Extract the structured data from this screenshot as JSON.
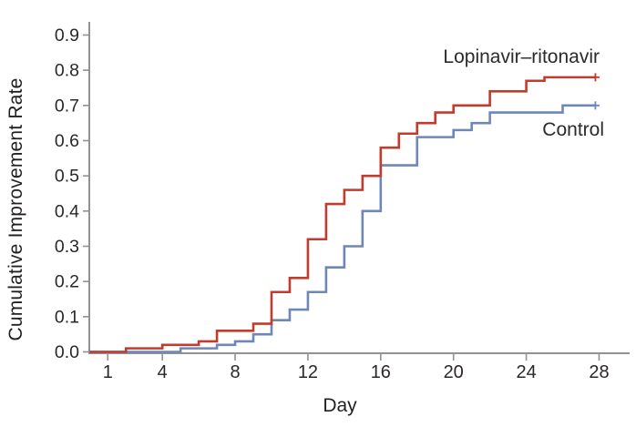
{
  "chart_data": {
    "type": "line",
    "subtype": "step-after-cumulative-incidence",
    "title": "",
    "xlabel": "Day",
    "ylabel": "Cumulative Improvement Rate",
    "xlim": [
      0,
      28
    ],
    "ylim": [
      0.0,
      0.9
    ],
    "x_ticks": [
      1,
      4,
      8,
      12,
      16,
      20,
      24,
      28
    ],
    "y_ticks": [
      "0.0",
      "0.1",
      "0.2",
      "0.3",
      "0.4",
      "0.5",
      "0.6",
      "0.7",
      "0.8",
      "0.9"
    ],
    "grid": false,
    "legend_position": "inline-labels-right",
    "axis_color": "#909295",
    "tick_text_color": "#2b2728",
    "series": [
      {
        "name": "Lopinavir–ritonavir",
        "color": "#c23b2c",
        "points": [
          [
            0,
            0.0
          ],
          [
            2,
            0.01
          ],
          [
            4,
            0.02
          ],
          [
            6,
            0.03
          ],
          [
            7,
            0.06
          ],
          [
            9,
            0.08
          ],
          [
            10,
            0.17
          ],
          [
            11,
            0.21
          ],
          [
            12,
            0.32
          ],
          [
            13,
            0.42
          ],
          [
            14,
            0.46
          ],
          [
            15,
            0.5
          ],
          [
            16,
            0.58
          ],
          [
            17,
            0.62
          ],
          [
            18,
            0.65
          ],
          [
            19,
            0.68
          ],
          [
            20,
            0.7
          ],
          [
            22,
            0.74
          ],
          [
            24,
            0.77
          ],
          [
            25,
            0.78
          ]
        ],
        "end_day": 27.8,
        "final_value": 0.78,
        "censored_at_end": true
      },
      {
        "name": "Control",
        "color": "#6f87b7",
        "points": [
          [
            0,
            0.0
          ],
          [
            5,
            0.01
          ],
          [
            7,
            0.02
          ],
          [
            8,
            0.03
          ],
          [
            9,
            0.05
          ],
          [
            10,
            0.09
          ],
          [
            11,
            0.12
          ],
          [
            12,
            0.17
          ],
          [
            13,
            0.24
          ],
          [
            14,
            0.3
          ],
          [
            15,
            0.4
          ],
          [
            16,
            0.53
          ],
          [
            18,
            0.61
          ],
          [
            20,
            0.63
          ],
          [
            21,
            0.65
          ],
          [
            22,
            0.68
          ],
          [
            26,
            0.7
          ]
        ],
        "end_day": 27.8,
        "final_value": 0.7,
        "censored_at_end": true
      }
    ]
  }
}
